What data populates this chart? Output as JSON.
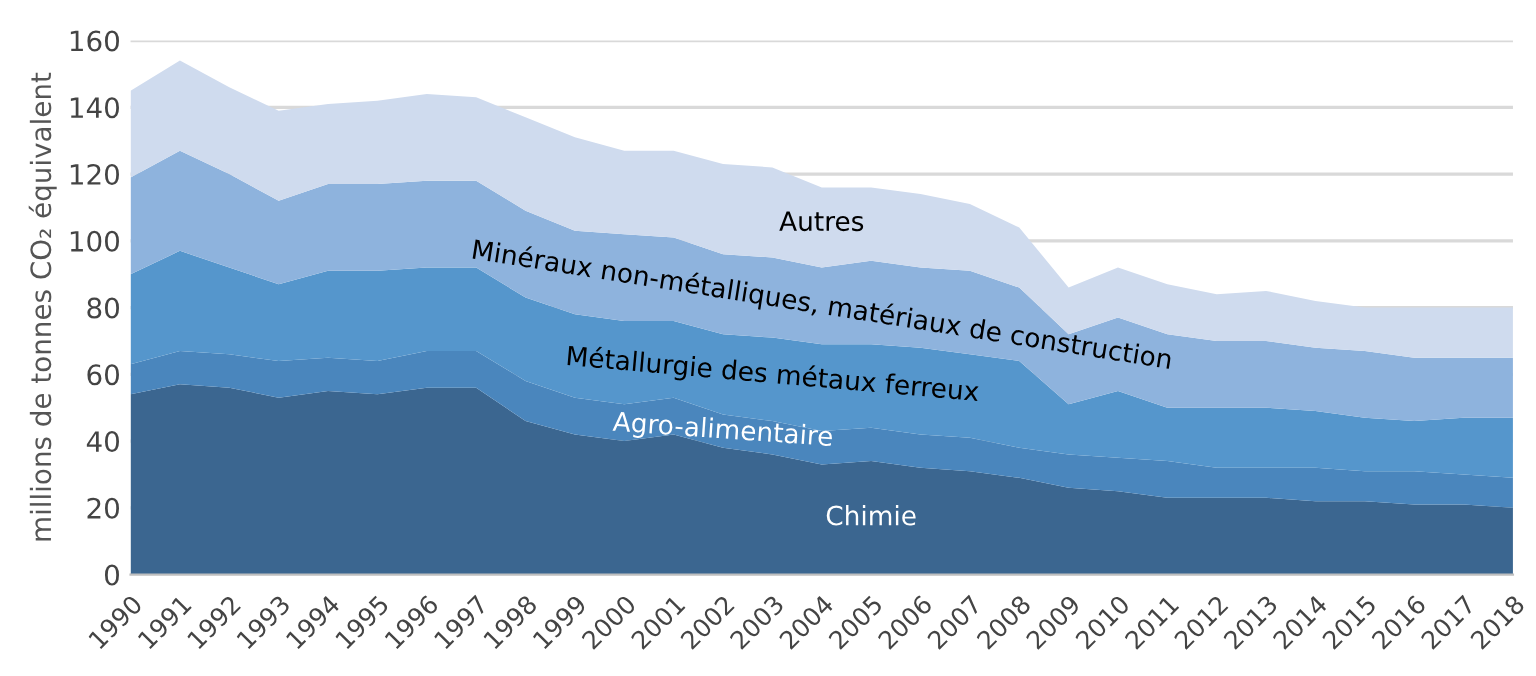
{
  "chart_data": {
    "type": "area",
    "stacked": true,
    "ylabel": "millions de tonnes CO₂ équivalent",
    "x": [
      1990,
      1991,
      1992,
      1993,
      1994,
      1995,
      1996,
      1997,
      1998,
      1999,
      2000,
      2001,
      2002,
      2003,
      2004,
      2005,
      2006,
      2007,
      2008,
      2009,
      2010,
      2011,
      2012,
      2013,
      2014,
      2015,
      2016,
      2017,
      2018
    ],
    "series": [
      {
        "name": "Chimie",
        "color": "#3b6690",
        "values": [
          54,
          57,
          56,
          53,
          55,
          54,
          56,
          56,
          46,
          42,
          40,
          42,
          38,
          36,
          33,
          34,
          32,
          31,
          29,
          26,
          25,
          23,
          23,
          23,
          22,
          22,
          21,
          21,
          20
        ]
      },
      {
        "name": "Agro-alimentaire",
        "color": "#4a86bd",
        "values": [
          9,
          10,
          10,
          11,
          10,
          10,
          11,
          11,
          12,
          11,
          11,
          11,
          10,
          10,
          10,
          10,
          10,
          10,
          9,
          10,
          10,
          11,
          9,
          9,
          10,
          9,
          10,
          9,
          9
        ]
      },
      {
        "name": "Métallurgie des métaux ferreux",
        "color": "#5596cc",
        "values": [
          27,
          30,
          26,
          23,
          26,
          27,
          25,
          25,
          25,
          25,
          25,
          23,
          24,
          25,
          26,
          25,
          26,
          25,
          26,
          15,
          20,
          16,
          18,
          18,
          17,
          16,
          15,
          17,
          18
        ]
      },
      {
        "name": "Minéraux non-métalliques, matériaux de construction",
        "color": "#8eb3dd",
        "values": [
          29,
          30,
          28,
          25,
          26,
          26,
          26,
          26,
          26,
          25,
          26,
          25,
          24,
          24,
          23,
          25,
          24,
          25,
          22,
          21,
          22,
          22,
          20,
          20,
          19,
          20,
          19,
          18,
          18
        ]
      },
      {
        "name": "Autres",
        "color": "#cfdbee",
        "values": [
          26,
          27,
          26,
          27,
          24,
          25,
          26,
          25,
          28,
          28,
          25,
          26,
          27,
          27,
          24,
          22,
          22,
          20,
          18,
          14,
          15,
          15,
          14,
          15,
          14,
          13,
          15,
          15,
          15
        ]
      }
    ],
    "xlim": [
      1990,
      2018
    ],
    "xticks": [
      1990,
      1991,
      1992,
      1993,
      1994,
      1995,
      1996,
      1997,
      1998,
      1999,
      2000,
      2001,
      2002,
      2003,
      2004,
      2005,
      2006,
      2007,
      2008,
      2009,
      2010,
      2011,
      2012,
      2013,
      2014,
      2015,
      2016,
      2017,
      2018
    ],
    "ylim": [
      0,
      160
    ],
    "yticks": [
      0,
      20,
      40,
      60,
      80,
      100,
      120,
      140,
      160
    ],
    "grid": "y",
    "legend": false
  }
}
